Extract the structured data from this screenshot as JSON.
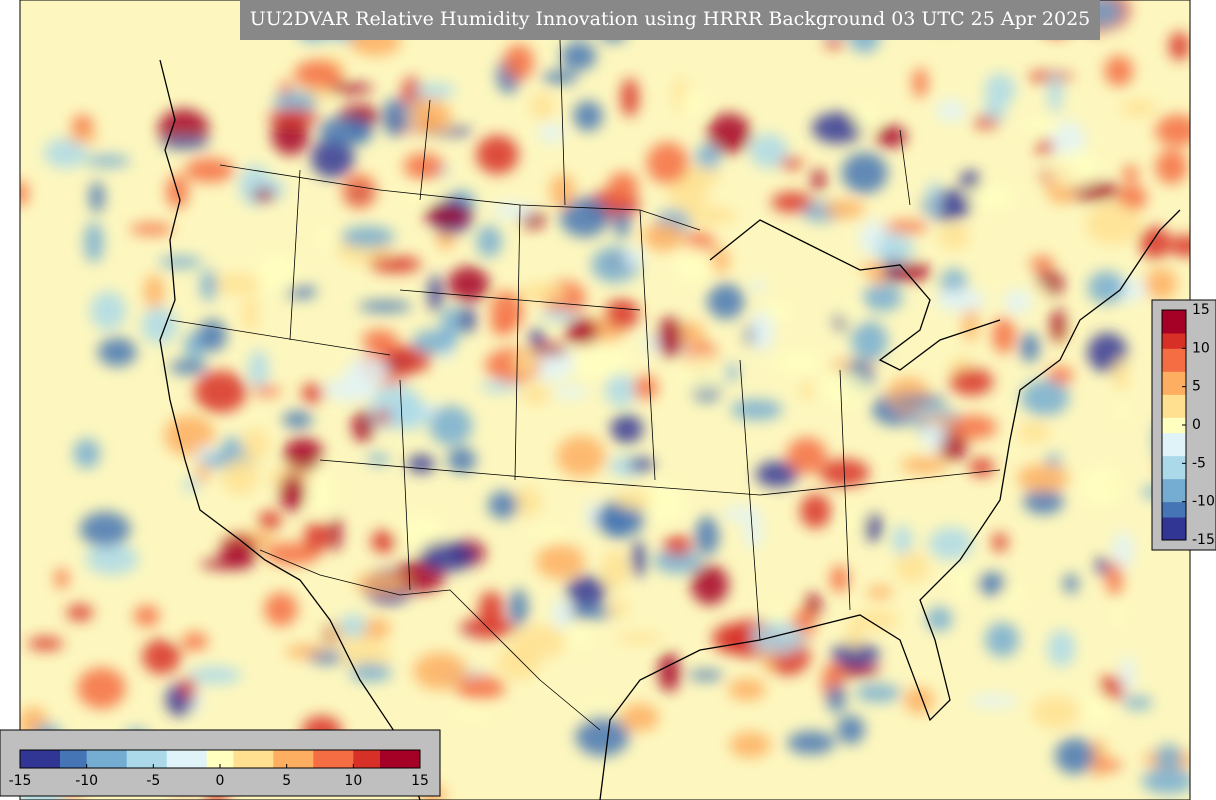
{
  "title": "UU2DVAR Relative Humidity Innovation using HRRR Background 03 UTC 25 Apr 2025",
  "colormap": [
    "#313695",
    "#4575b4",
    "#74add1",
    "#abd9e9",
    "#e0f3f8",
    "#ffffbf",
    "#fee090",
    "#fdae61",
    "#f46d43",
    "#d73027",
    "#a50026"
  ],
  "horizontal_colorbar": {
    "limits": [
      -15,
      15
    ],
    "ticks": [
      -15,
      -10,
      -5,
      0,
      5,
      10,
      15
    ]
  },
  "vertical_colorbar": {
    "limits": [
      -15,
      15
    ],
    "ticks": [
      -15,
      -10,
      -5,
      0,
      5,
      10,
      15
    ]
  }
}
